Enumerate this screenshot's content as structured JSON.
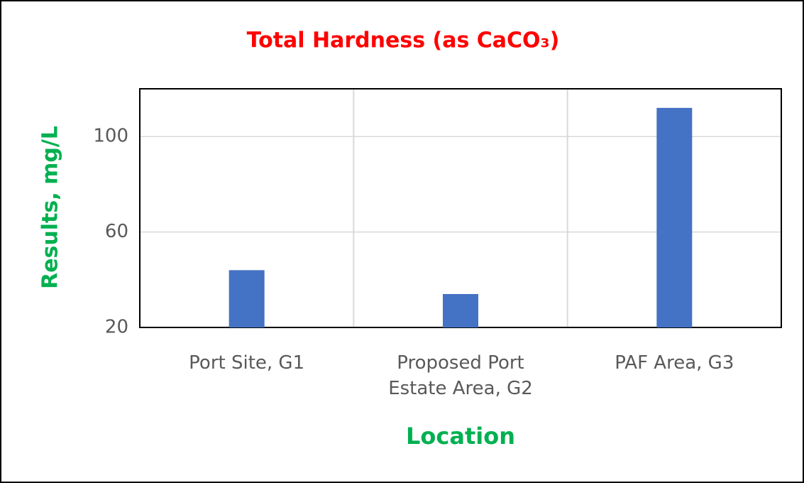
{
  "chart_data": {
    "type": "bar",
    "title": "Total Hardness (as CaCO₃)",
    "x_label": "Location",
    "y_label": "Results, mg/L",
    "categories": [
      "Port Site, G1",
      "Proposed Port Estate Area, G2",
      "PAF Area, G3"
    ],
    "values": [
      44,
      34,
      112
    ],
    "color": "#4472c4",
    "ylim": [
      20,
      120
    ],
    "yticks": [
      20,
      60,
      100
    ],
    "grid": true
  }
}
